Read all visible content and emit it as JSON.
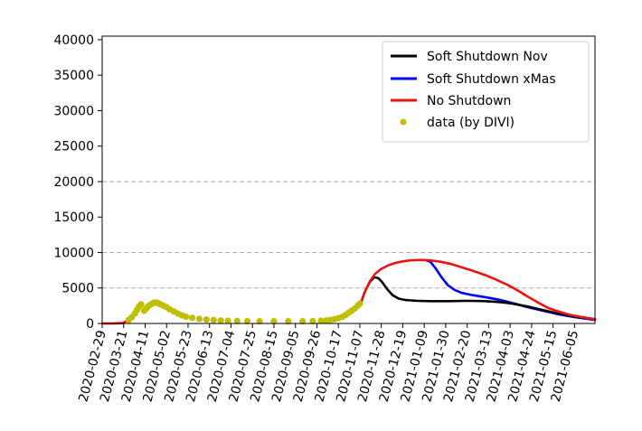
{
  "chart_data": {
    "type": "line",
    "title": "",
    "xlabel": "",
    "ylabel": "",
    "x_start": "2020-02-29",
    "x_end": "2021-06-25",
    "xticks": [
      "2020-02-29",
      "2020-03-21",
      "2020-04-11",
      "2020-05-02",
      "2020-05-23",
      "2020-06-13",
      "2020-07-04",
      "2020-07-25",
      "2020-08-15",
      "2020-09-05",
      "2020-09-26",
      "2020-10-17",
      "2020-11-07",
      "2020-11-28",
      "2020-12-19",
      "2021-01-09",
      "2021-01-30",
      "2021-02-20",
      "2021-03-13",
      "2021-04-03",
      "2021-04-24",
      "2021-05-15",
      "2021-06-05"
    ],
    "ylim": [
      0,
      40500
    ],
    "yticks": [
      0,
      5000,
      10000,
      15000,
      20000,
      25000,
      30000,
      35000,
      40000
    ],
    "yticks_labels": [
      "0",
      "5000",
      "10000",
      "15000",
      "20000",
      "25000",
      "30000",
      "35000",
      "40000"
    ],
    "hlines": [
      5000,
      10000,
      20000
    ],
    "grid": "horizontal dashed lines at 5000, 10000, 20000",
    "legend_position": "top-right",
    "series": [
      {
        "name": "Soft Shutdown Nov",
        "color": "#000000",
        "style": "line",
        "points": [
          [
            "2020-11-08",
            2900
          ],
          [
            "2020-11-12",
            4500
          ],
          [
            "2020-11-17",
            5900
          ],
          [
            "2020-11-21",
            6500
          ],
          [
            "2020-11-25",
            6400
          ],
          [
            "2020-11-29",
            5800
          ],
          [
            "2020-12-04",
            4800
          ],
          [
            "2020-12-09",
            4000
          ],
          [
            "2020-12-15",
            3500
          ],
          [
            "2020-12-22",
            3300
          ],
          [
            "2021-01-01",
            3200
          ],
          [
            "2021-01-15",
            3150
          ],
          [
            "2021-02-01",
            3150
          ],
          [
            "2021-02-20",
            3200
          ],
          [
            "2021-03-10",
            3150
          ],
          [
            "2021-03-25",
            3000
          ],
          [
            "2021-04-05",
            2800
          ],
          [
            "2021-04-20",
            2400
          ],
          [
            "2021-05-05",
            1900
          ],
          [
            "2021-05-20",
            1400
          ],
          [
            "2021-06-05",
            1000
          ],
          [
            "2021-06-25",
            600
          ]
        ]
      },
      {
        "name": "Soft Shutdown xMas",
        "color": "#0000ff",
        "style": "line",
        "points": [
          [
            "2021-01-10",
            8950
          ],
          [
            "2021-01-15",
            8700
          ],
          [
            "2021-01-20",
            7800
          ],
          [
            "2021-01-26",
            6500
          ],
          [
            "2021-02-01",
            5400
          ],
          [
            "2021-02-08",
            4700
          ],
          [
            "2021-02-15",
            4300
          ],
          [
            "2021-02-25",
            4000
          ],
          [
            "2021-03-10",
            3700
          ],
          [
            "2021-03-25",
            3300
          ],
          [
            "2021-04-05",
            2900
          ],
          [
            "2021-04-20",
            2300
          ],
          [
            "2021-05-05",
            1800
          ],
          [
            "2021-05-20",
            1300
          ],
          [
            "2021-06-05",
            900
          ],
          [
            "2021-06-25",
            500
          ]
        ]
      },
      {
        "name": "No Shutdown",
        "color": "#ee1111",
        "style": "line",
        "points": [
          [
            "2020-11-08",
            2900
          ],
          [
            "2020-11-12",
            4500
          ],
          [
            "2020-11-17",
            6000
          ],
          [
            "2020-11-22",
            7000
          ],
          [
            "2020-11-28",
            7700
          ],
          [
            "2020-12-05",
            8200
          ],
          [
            "2020-12-12",
            8550
          ],
          [
            "2020-12-19",
            8750
          ],
          [
            "2020-12-26",
            8900
          ],
          [
            "2021-01-05",
            8950
          ],
          [
            "2021-01-15",
            8900
          ],
          [
            "2021-01-25",
            8700
          ],
          [
            "2021-02-05",
            8350
          ],
          [
            "2021-02-15",
            7900
          ],
          [
            "2021-02-25",
            7450
          ],
          [
            "2021-03-10",
            6800
          ],
          [
            "2021-03-20",
            6200
          ],
          [
            "2021-04-01",
            5400
          ],
          [
            "2021-04-10",
            4700
          ],
          [
            "2021-04-20",
            3800
          ],
          [
            "2021-05-01",
            2900
          ],
          [
            "2021-05-10",
            2200
          ],
          [
            "2021-05-20",
            1700
          ],
          [
            "2021-06-01",
            1200
          ],
          [
            "2021-06-10",
            950
          ],
          [
            "2021-06-25",
            600
          ]
        ]
      },
      {
        "name": "data (by DIVI)",
        "color": "#bfbf00",
        "style": "scatter",
        "points": [
          [
            "2020-03-26",
            500
          ],
          [
            "2020-03-29",
            900
          ],
          [
            "2020-04-01",
            1400
          ],
          [
            "2020-04-03",
            1900
          ],
          [
            "2020-04-05",
            2400
          ],
          [
            "2020-04-07",
            2700
          ],
          [
            "2020-04-10",
            1800
          ],
          [
            "2020-04-12",
            2100
          ],
          [
            "2020-04-14",
            2400
          ],
          [
            "2020-04-16",
            2650
          ],
          [
            "2020-04-18",
            2800
          ],
          [
            "2020-04-20",
            2950
          ],
          [
            "2020-04-22",
            2950
          ],
          [
            "2020-04-24",
            2850
          ],
          [
            "2020-04-26",
            2700
          ],
          [
            "2020-04-29",
            2500
          ],
          [
            "2020-05-02",
            2300
          ],
          [
            "2020-05-05",
            2000
          ],
          [
            "2020-05-09",
            1700
          ],
          [
            "2020-05-13",
            1400
          ],
          [
            "2020-05-17",
            1150
          ],
          [
            "2020-05-21",
            950
          ],
          [
            "2020-05-27",
            800
          ],
          [
            "2020-06-03",
            650
          ],
          [
            "2020-06-10",
            550
          ],
          [
            "2020-06-17",
            480
          ],
          [
            "2020-06-24",
            420
          ],
          [
            "2020-07-01",
            380
          ],
          [
            "2020-07-10",
            350
          ],
          [
            "2020-07-20",
            330
          ],
          [
            "2020-08-01",
            310
          ],
          [
            "2020-08-15",
            300
          ],
          [
            "2020-08-29",
            300
          ],
          [
            "2020-09-12",
            310
          ],
          [
            "2020-09-22",
            330
          ],
          [
            "2020-09-30",
            380
          ],
          [
            "2020-10-05",
            420
          ],
          [
            "2020-10-09",
            500
          ],
          [
            "2020-10-13",
            600
          ],
          [
            "2020-10-17",
            750
          ],
          [
            "2020-10-21",
            950
          ],
          [
            "2020-10-24",
            1200
          ],
          [
            "2020-10-27",
            1500
          ],
          [
            "2020-10-30",
            1800
          ],
          [
            "2020-11-02",
            2100
          ],
          [
            "2020-11-05",
            2500
          ],
          [
            "2020-11-07",
            2800
          ]
        ]
      }
    ],
    "pre_data_line": {
      "color": "#ee1111",
      "points": [
        [
          "2020-02-29",
          0
        ],
        [
          "2020-03-10",
          0
        ],
        [
          "2020-03-20",
          60
        ],
        [
          "2020-03-25",
          400
        ]
      ]
    }
  }
}
